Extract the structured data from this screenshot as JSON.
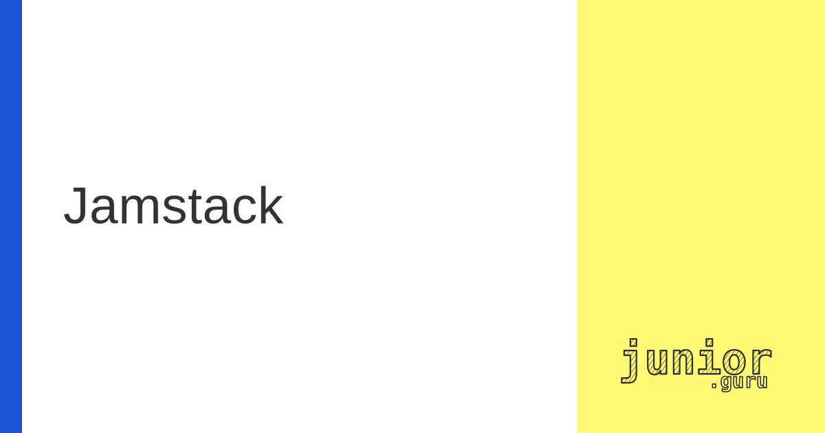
{
  "colors": {
    "accent": "#1a55d6",
    "panel": "#fffa74",
    "title_text": "#333333",
    "logo_ink": "#2b2b2b"
  },
  "title": "Jamstack",
  "logo": {
    "wordmark": "junior",
    "domain": ".guru"
  }
}
